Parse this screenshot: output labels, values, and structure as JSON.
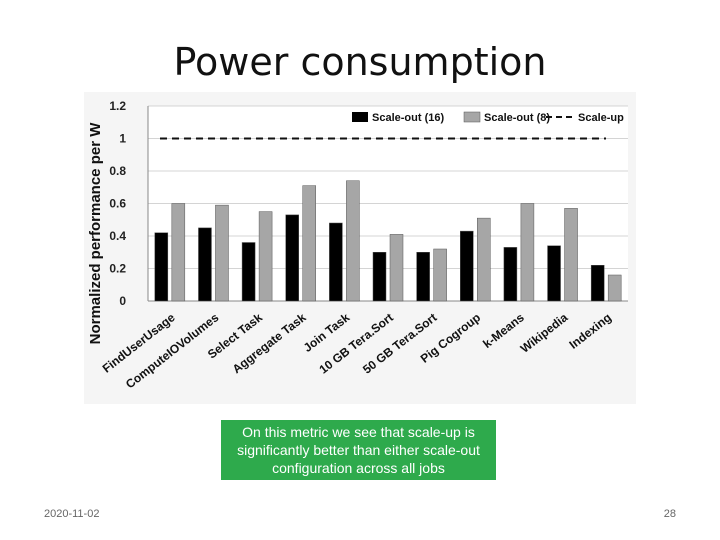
{
  "slide": {
    "title": "Power consumption",
    "date": "2020-11-02",
    "page_number": "28",
    "callout": "On this metric we see that scale-up is significantly better than either scale-out configuration across all jobs"
  },
  "colors": {
    "series_a": "#000000",
    "series_b": "#a6a6a6",
    "baseline": "#111111",
    "callout_bg": "#2eaa4c"
  },
  "chart_data": {
    "type": "bar",
    "title": "",
    "xlabel": "",
    "ylabel": "Normalized performance per W",
    "ylim": [
      0,
      1.2
    ],
    "yticks": [
      0,
      0.2,
      0.4,
      0.6,
      0.8,
      1,
      1.2
    ],
    "ytick_labels": [
      "0",
      "0.2",
      "0.4",
      "0.6",
      "0.8",
      "1",
      "1.2"
    ],
    "grid": true,
    "legend_position": "top",
    "categories": [
      "FindUserUsage",
      "ComputeIOVolumes",
      "Select Task",
      "Aggregate Task",
      "Join Task",
      "10 GB Tera.Sort",
      "50 GB Tera.Sort",
      "Pig Cogroup",
      "k-Means",
      "Wikipedia",
      "Indexing"
    ],
    "series": [
      {
        "name": "Scale-out (16)",
        "values": [
          0.42,
          0.45,
          0.36,
          0.53,
          0.48,
          0.3,
          0.3,
          0.43,
          0.33,
          0.34,
          0.22
        ]
      },
      {
        "name": "Scale-out (8)",
        "values": [
          0.6,
          0.59,
          0.55,
          0.71,
          0.74,
          0.41,
          0.32,
          0.51,
          0.6,
          0.57,
          0.16
        ]
      }
    ],
    "reference_line": {
      "name": "Scale-up",
      "value": 1.0
    }
  }
}
